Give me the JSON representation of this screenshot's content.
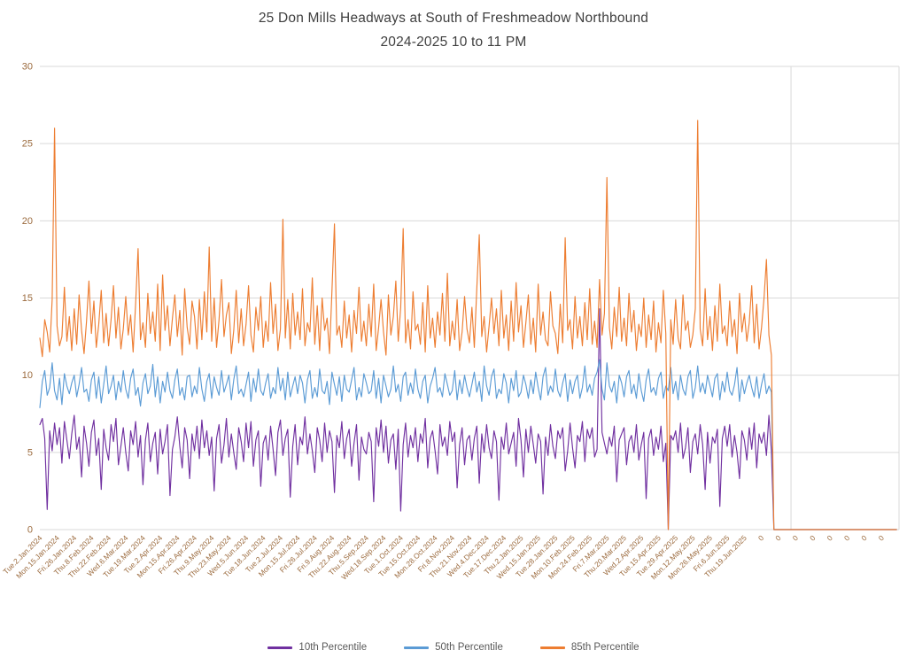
{
  "title": {
    "line1": "25 Don Mills Headways at South of Freshmeadow Northbound",
    "line2": "2024-2025 10 to 11 PM"
  },
  "legend": [
    {
      "label": "10th Percentile",
      "color": "#7030A0"
    },
    {
      "label": "50th Percentile",
      "color": "#5B9BD5"
    },
    {
      "label": "85th Percentile",
      "color": "#ED7D31"
    }
  ],
  "colors": {
    "title_text": "#3f3f3f",
    "legend_text": "#595959",
    "axis_tick_labels": "#9B6A3D",
    "gridlines": "#D9D9D9",
    "background": "#FFFFFF",
    "series_10th": "#7030A0",
    "series_50th": "#5B9BD5",
    "series_85th": "#ED7D31"
  },
  "chart_data": {
    "type": "line",
    "title": "25 Don Mills Headways at South of Freshmeadow Northbound 2024-2025 10 to 11 PM",
    "xlabel": "",
    "ylabel": "",
    "ylim": [
      0,
      30
    ],
    "yticks": [
      0,
      5,
      10,
      15,
      20,
      25,
      30
    ],
    "grid": "horizontal",
    "legend_position": "bottom",
    "points_per_tick": 7,
    "tail_zero_points": 50,
    "x_tick_labels": [
      "Tue.2.Jan.2024",
      "Mon.15.Jan.2024",
      "Fri.26.Jan.2024",
      "Thu.8.Feb.2024",
      "Thu.22.Feb.2024",
      "Wed.6.Mar.2024",
      "Tue.19.Mar.2024",
      "Tue.2.Apr.2024",
      "Mon.15.Apr.2024",
      "Fri.26.Apr.2024",
      "Thu.9.May.2024",
      "Thu.23.May.2024",
      "Wed.5.Jun.2024",
      "Tue.18.Jun.2024",
      "Tue.2.Jul.2024",
      "Mon.15.Jul.2024",
      "Fri.26.Jul.2024",
      "Fri.9.Aug.2024",
      "Thu.22.Aug.2024",
      "Thu.5.Sep.2024",
      "Wed.18.Sep.2024",
      "Tue.1.Oct.2024",
      "Tue.15.Oct.2024",
      "Mon.28.Oct.2024",
      "Fri.8.Nov.2024",
      "Thu.21.Nov.2024",
      "Wed.4.Dec.2024",
      "Tue.17.Dec.2024",
      "Thu.2.Jan.2025",
      "Wed.15.Jan.2025",
      "Tue.28.Jan.2025",
      "Mon.10.Feb.2025",
      "Mon.24.Feb.2025",
      "Fri.7.Mar.2025",
      "Thu.20.Mar.2025",
      "Wed.2.Apr.2025",
      "Tue.15.Apr.2025",
      "Tue.29.Apr.2025",
      "Mon.12.May.2025",
      "Mon.26.May.2025",
      "Fri.6.Jun.2025",
      "Thu.19.Jun.2025",
      "0",
      "0",
      "0",
      "0",
      "0",
      "0",
      "0",
      "0"
    ],
    "series": [
      {
        "name": "10th Percentile",
        "color": "#7030A0",
        "values": [
          6.8,
          7.2,
          5.9,
          1.3,
          6.4,
          5.1,
          6.9,
          5.5,
          6.6,
          4.3,
          7.0,
          5.8,
          4.6,
          6.2,
          7.4,
          5.2,
          6.0,
          3.4,
          6.7,
          5.6,
          4.1,
          6.3,
          7.1,
          4.8,
          5.9,
          2.6,
          6.5,
          5.3,
          4.5,
          6.8,
          5.7,
          7.2,
          4.2,
          5.4,
          6.6,
          5.0,
          3.8,
          6.4,
          5.5,
          7.0,
          4.7,
          6.1,
          2.9,
          5.8,
          6.9,
          4.4,
          5.6,
          6.3,
          3.6,
          6.5,
          4.9,
          5.7,
          6.8,
          2.2,
          5.2,
          6.0,
          7.3,
          5.4,
          4.0,
          6.6,
          5.8,
          3.3,
          6.2,
          5.1,
          6.7,
          4.6,
          7.1,
          5.3,
          6.4,
          4.8,
          6.0,
          2.5,
          5.9,
          6.8,
          4.3,
          5.5,
          7.2,
          4.7,
          6.2,
          5.0,
          3.9,
          6.6,
          5.7,
          4.4,
          6.9,
          5.3,
          7.0,
          4.1,
          5.8,
          6.4,
          2.8,
          5.6,
          6.1,
          4.5,
          6.7,
          5.2,
          3.5,
          6.3,
          7.1,
          4.8,
          5.9,
          6.5,
          2.1,
          5.4,
          6.8,
          4.2,
          6.0,
          5.5,
          7.3,
          4.9,
          6.2,
          5.1,
          3.7,
          6.6,
          5.8,
          4.4,
          6.9,
          5.0,
          6.4,
          5.7,
          2.4,
          6.1,
          5.3,
          7.0,
          4.6,
          5.9,
          6.5,
          4.1,
          5.6,
          6.8,
          3.2,
          6.0,
          5.2,
          4.9,
          6.3,
          5.7,
          1.8,
          6.6,
          5.4,
          7.1,
          5.0,
          6.7,
          4.3,
          5.8,
          6.2,
          3.9,
          6.5,
          1.2,
          5.5,
          6.9,
          4.7,
          6.1,
          5.3,
          6.6,
          4.4,
          6.2,
          5.6,
          7.2,
          4.0,
          5.9,
          6.4,
          5.1,
          3.6,
          6.8,
          5.4,
          6.0,
          4.8,
          7.0,
          5.7,
          6.3,
          2.7,
          5.5,
          6.6,
          4.2,
          5.8,
          6.1,
          4.5,
          5.9,
          6.7,
          3.0,
          6.2,
          5.0,
          6.8,
          5.3,
          4.6,
          6.4,
          5.7,
          1.9,
          6.0,
          5.2,
          6.9,
          4.9,
          5.6,
          6.3,
          4.1,
          7.2,
          5.8,
          3.4,
          6.5,
          5.0,
          6.7,
          5.5,
          4.3,
          6.2,
          5.7,
          2.3,
          6.0,
          4.8,
          6.8,
          5.4,
          4.6,
          6.4,
          5.9,
          6.6,
          3.8,
          5.1,
          6.9,
          5.3,
          4.0,
          6.1,
          5.7,
          7.0,
          4.4,
          6.5,
          5.9,
          6.6,
          4.7,
          5.2,
          14.3,
          6.3,
          5.6,
          4.9,
          6.0,
          5.4,
          6.7,
          3.1,
          5.8,
          6.2,
          6.6,
          4.2,
          5.7,
          6.1,
          5.0,
          6.8,
          4.5,
          5.5,
          6.3,
          2.0,
          5.9,
          6.5,
          4.8,
          6.0,
          5.2,
          6.7,
          4.4,
          5.6,
          0.0,
          6.1,
          5.8,
          6.4,
          5.0,
          6.9,
          4.6,
          5.3,
          6.6,
          3.7,
          5.7,
          6.2,
          4.9,
          6.8,
          5.5,
          2.6,
          6.3,
          4.3,
          6.0,
          5.6,
          6.5,
          1.5,
          5.9,
          6.7,
          5.4,
          6.8,
          4.7,
          6.1,
          5.0,
          3.3,
          6.4,
          5.8,
          4.5,
          6.6,
          5.2,
          6.9,
          4.0,
          6.2,
          5.6,
          6.3,
          4.8,
          7.4,
          5.1,
          0.0
        ]
      },
      {
        "name": "50th Percentile",
        "color": "#5B9BD5",
        "values": [
          7.9,
          9.6,
          10.3,
          8.7,
          9.2,
          10.8,
          9.0,
          8.4,
          9.8,
          8.1,
          10.1,
          9.3,
          8.8,
          9.5,
          10.0,
          8.6,
          9.4,
          10.5,
          8.9,
          9.1,
          8.3,
          9.7,
          10.2,
          8.5,
          9.9,
          8.2,
          9.4,
          10.6,
          8.8,
          9.3,
          10.0,
          8.4,
          9.6,
          8.9,
          10.3,
          9.1,
          8.5,
          9.8,
          10.4,
          8.7,
          9.2,
          8.0,
          9.5,
          10.1,
          8.8,
          9.3,
          10.7,
          8.6,
          9.9,
          8.2,
          9.6,
          8.9,
          10.2,
          9.0,
          8.5,
          9.7,
          10.4,
          8.7,
          9.2,
          8.4,
          9.9,
          10.0,
          8.6,
          9.3,
          8.8,
          10.5,
          9.1,
          8.3,
          9.6,
          10.1,
          8.5,
          9.9,
          9.2,
          8.7,
          10.3,
          8.9,
          9.4,
          10.0,
          8.4,
          9.7,
          10.6,
          8.8,
          9.1,
          8.6,
          9.4,
          10.2,
          8.3,
          9.8,
          8.9,
          10.4,
          9.0,
          8.7,
          9.5,
          10.1,
          8.5,
          9.2,
          8.8,
          10.5,
          9.0,
          9.8,
          8.4,
          10.2,
          8.6,
          9.3,
          9.9,
          8.8,
          10.0,
          9.5,
          8.2,
          9.7,
          10.3,
          8.5,
          9.2,
          8.6,
          10.4,
          9.0,
          8.8,
          9.6,
          8.1,
          10.2,
          9.4,
          8.7,
          9.9,
          8.3,
          10.0,
          9.1,
          8.9,
          9.7,
          10.5,
          8.4,
          9.2,
          8.6,
          10.1,
          9.5,
          8.8,
          9.0,
          10.3,
          8.5,
          9.8,
          8.2,
          10.0,
          9.3,
          8.6,
          9.1,
          10.6,
          8.9,
          9.4,
          8.3,
          9.9,
          10.2,
          8.7,
          9.5,
          8.8,
          10.4,
          9.1,
          8.5,
          9.6,
          10.0,
          8.2,
          9.3,
          9.8,
          10.5,
          8.9,
          9.2,
          8.6,
          10.1,
          9.4,
          8.7,
          9.0,
          10.3,
          8.4,
          9.7,
          8.8,
          10.0,
          9.2,
          8.6,
          9.4,
          10.2,
          8.9,
          9.6,
          8.3,
          10.6,
          9.3,
          8.7,
          9.9,
          10.4,
          8.5,
          9.1,
          8.8,
          10.1,
          9.5,
          8.2,
          9.8,
          9.0,
          10.3,
          8.6,
          8.9,
          10.0,
          9.4,
          8.5,
          9.7,
          8.8,
          10.2,
          9.2,
          8.4,
          9.9,
          10.5,
          8.7,
          9.3,
          8.9,
          10.4,
          9.0,
          8.6,
          9.5,
          10.1,
          8.3,
          9.7,
          8.8,
          9.6,
          10.0,
          8.5,
          9.2,
          10.6,
          8.9,
          9.4,
          8.7,
          9.8,
          10.2,
          11.0,
          9.1,
          8.4,
          10.8,
          9.3,
          8.9,
          9.6,
          8.2,
          10.0,
          9.5,
          8.6,
          9.9,
          10.3,
          8.8,
          9.4,
          8.5,
          10.1,
          9.0,
          8.3,
          9.7,
          10.4,
          8.9,
          9.2,
          8.7,
          9.8,
          10.2,
          8.5,
          9.3,
          9.0,
          10.5,
          8.8,
          9.6,
          8.4,
          10.0,
          9.1,
          8.7,
          9.9,
          10.3,
          8.5,
          9.2,
          10.6,
          8.9,
          9.5,
          8.8,
          10.0,
          9.3,
          8.6,
          9.8,
          10.1,
          8.4,
          9.6,
          8.9,
          10.2,
          9.0,
          8.7,
          9.4,
          10.5,
          8.3,
          9.7,
          8.8,
          9.5,
          10.0,
          9.2,
          8.6,
          9.9,
          8.5,
          9.4,
          10.1,
          8.8,
          9.3,
          8.9,
          0.0
        ]
      },
      {
        "name": "85th Percentile",
        "color": "#ED7D31",
        "values": [
          12.4,
          11.2,
          13.6,
          12.8,
          11.5,
          14.9,
          26.0,
          13.2,
          11.9,
          12.5,
          15.7,
          12.2,
          13.8,
          11.6,
          14.3,
          12.0,
          15.2,
          12.9,
          11.4,
          13.5,
          16.1,
          12.7,
          14.8,
          11.8,
          13.3,
          15.5,
          12.1,
          14.0,
          11.9,
          13.6,
          15.8,
          12.4,
          14.4,
          11.7,
          13.0,
          15.1,
          12.6,
          13.9,
          11.5,
          14.6,
          18.2,
          12.3,
          13.4,
          11.8,
          15.3,
          12.7,
          14.1,
          12.2,
          15.9,
          11.6,
          16.5,
          12.9,
          14.5,
          11.9,
          13.7,
          15.2,
          12.5,
          14.2,
          11.3,
          15.6,
          13.1,
          12.0,
          14.8,
          13.8,
          11.7,
          14.9,
          12.3,
          15.4,
          12.8,
          18.3,
          12.2,
          15.0,
          11.8,
          13.6,
          16.2,
          12.5,
          13.9,
          14.7,
          11.4,
          12.9,
          15.5,
          12.1,
          14.3,
          11.9,
          13.3,
          15.8,
          12.6,
          11.5,
          14.4,
          12.9,
          15.1,
          11.8,
          13.5,
          12.2,
          16.0,
          12.7,
          14.6,
          11.6,
          13.0,
          20.1,
          12.4,
          14.9,
          11.7,
          15.3,
          12.6,
          14.1,
          12.3,
          15.6,
          11.9,
          13.4,
          12.8,
          16.3,
          12.0,
          14.5,
          11.6,
          15.0,
          12.9,
          13.7,
          11.4,
          15.5,
          19.8,
          12.6,
          13.2,
          11.8,
          14.8,
          12.4,
          13.9,
          11.5,
          14.2,
          12.7,
          15.7,
          12.2,
          13.5,
          11.9,
          14.6,
          12.5,
          15.9,
          11.6,
          13.1,
          14.9,
          12.8,
          11.3,
          15.2,
          12.6,
          13.8,
          16.1,
          12.2,
          14.4,
          19.5,
          12.1,
          13.6,
          11.7,
          15.4,
          12.9,
          13.3,
          12.0,
          14.7,
          11.5,
          15.8,
          12.4,
          13.7,
          11.8,
          14.1,
          12.6,
          15.3,
          12.2,
          16.6,
          11.9,
          13.5,
          12.3,
          14.9,
          11.6,
          12.8,
          15.1,
          13.0,
          12.1,
          14.4,
          11.8,
          15.6,
          19.1,
          12.5,
          13.8,
          11.5,
          13.2,
          15.0,
          12.7,
          14.3,
          11.9,
          15.5,
          12.4,
          13.9,
          11.6,
          14.8,
          12.2,
          16.0,
          12.8,
          14.5,
          11.8,
          13.4,
          15.2,
          12.0,
          13.7,
          11.5,
          15.9,
          12.6,
          14.1,
          12.3,
          11.9,
          15.4,
          13.2,
          12.7,
          11.4,
          14.6,
          12.1,
          18.9,
          12.9,
          13.6,
          11.7,
          15.1,
          12.4,
          13.8,
          11.9,
          14.7,
          12.3,
          15.6,
          12.0,
          13.5,
          11.8,
          16.2,
          12.6,
          14.0,
          22.8,
          13.1,
          11.7,
          14.4,
          12.5,
          15.7,
          12.2,
          13.7,
          11.9,
          15.3,
          12.8,
          14.2,
          11.6,
          13.3,
          12.5,
          15.0,
          11.8,
          13.9,
          12.3,
          14.8,
          11.5,
          13.4,
          12.1,
          15.5,
          12.7,
          0.0,
          13.6,
          12.0,
          14.9,
          12.4,
          11.7,
          15.2,
          12.9,
          13.5,
          11.8,
          12.6,
          14.3,
          26.5,
          13.0,
          11.9,
          15.6,
          12.3,
          13.8,
          11.6,
          14.5,
          12.2,
          15.9,
          12.7,
          13.2,
          11.9,
          14.8,
          12.5,
          13.6,
          11.4,
          15.3,
          12.8,
          14.0,
          12.2,
          13.4,
          15.8,
          12.1,
          14.6,
          11.7,
          13.1,
          15.0,
          17.5,
          12.6,
          11.3,
          0.0
        ]
      }
    ]
  }
}
